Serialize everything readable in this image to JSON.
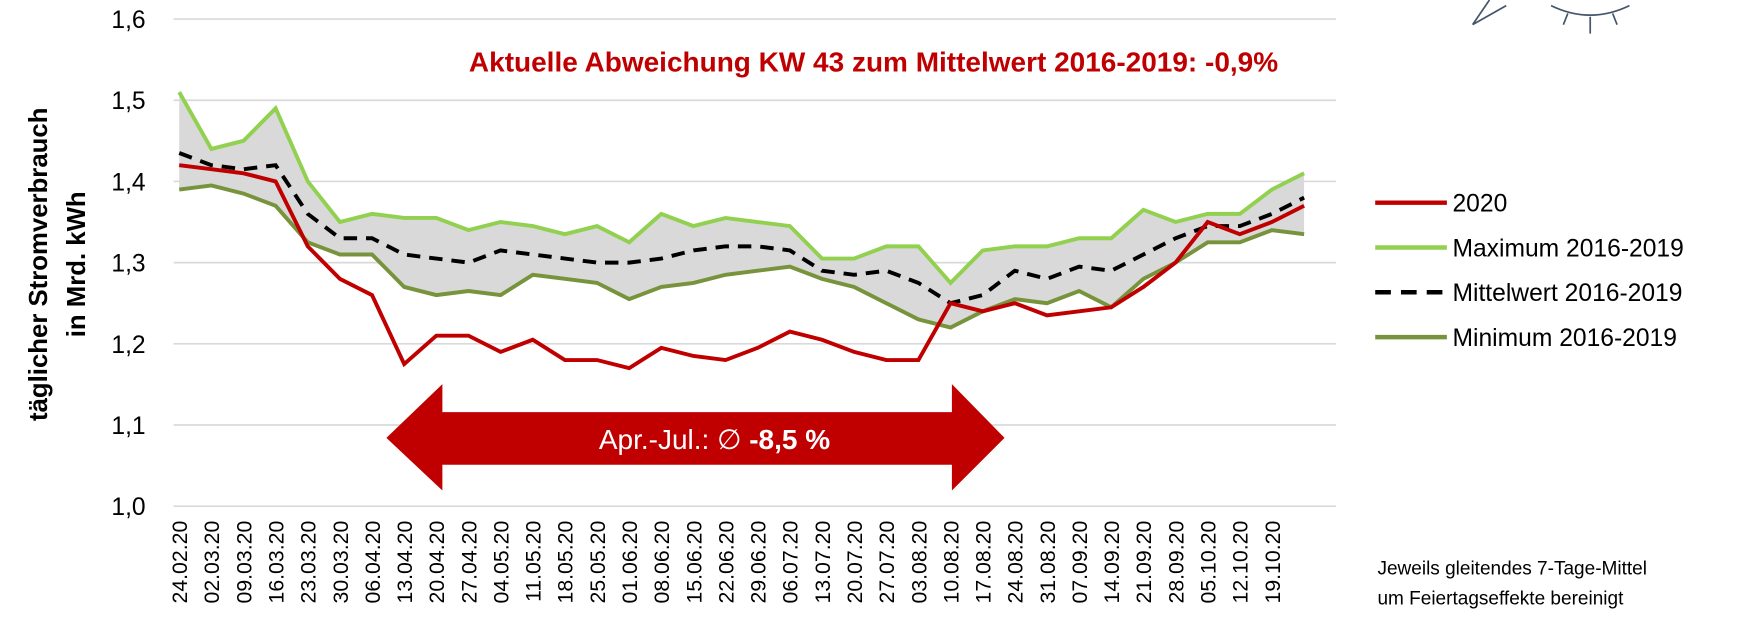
{
  "chart_data": {
    "type": "line",
    "annotation": "Aktuelle Abweichung KW 43 zum Mittelwert 2016-2019: -0,9%",
    "arrow_label": "Apr.-Jul.: ∅ ",
    "arrow_value": "-8,5 %",
    "ylabel": [
      "täglicher Stromverbrauch",
      "in Mrd. kWh"
    ],
    "note": [
      "Jeweils gleitendes 7-Tage-Mittel",
      "um Feiertagseffekte bereinigt"
    ],
    "categories": [
      "24.02.20",
      "02.03.20",
      "09.03.20",
      "16.03.20",
      "23.03.20",
      "30.03.20",
      "06.04.20",
      "13.04.20",
      "20.04.20",
      "27.04.20",
      "04.05.20",
      "11.05.20",
      "18.05.20",
      "25.05.20",
      "01.06.20",
      "08.06.20",
      "15.06.20",
      "22.06.20",
      "29.06.20",
      "06.07.20",
      "13.07.20",
      "20.07.20",
      "27.07.20",
      "03.08.20",
      "10.08.20",
      "17.08.20",
      "24.08.20",
      "31.08.20",
      "07.09.20",
      "14.09.20",
      "21.09.20",
      "28.09.20",
      "05.10.20",
      "12.10.20",
      "19.10.20",
      null
    ],
    "series": [
      {
        "name": "2020",
        "color": "#c00000",
        "dash": false,
        "values": [
          1.42,
          1.415,
          1.41,
          1.4,
          1.32,
          1.28,
          1.26,
          1.175,
          1.21,
          1.21,
          1.19,
          1.205,
          1.18,
          1.18,
          1.17,
          1.195,
          1.185,
          1.18,
          1.195,
          1.215,
          1.205,
          1.19,
          1.18,
          1.18,
          1.25,
          1.24,
          1.25,
          1.235,
          1.24,
          1.245,
          1.27,
          1.3,
          1.35,
          1.335,
          1.35,
          1.37
        ]
      },
      {
        "name": "Maximum 2016-2019",
        "color": "#92d050",
        "dash": false,
        "values": [
          1.51,
          1.44,
          1.45,
          1.49,
          1.4,
          1.35,
          1.36,
          1.355,
          1.355,
          1.34,
          1.35,
          1.345,
          1.335,
          1.345,
          1.325,
          1.36,
          1.345,
          1.355,
          1.35,
          1.345,
          1.305,
          1.305,
          1.32,
          1.32,
          1.275,
          1.315,
          1.32,
          1.32,
          1.33,
          1.33,
          1.365,
          1.35,
          1.36,
          1.36,
          1.39,
          1.41
        ]
      },
      {
        "name": "Mittelwert 2016-2019",
        "color": "#000000",
        "dash": true,
        "values": [
          1.435,
          1.42,
          1.415,
          1.42,
          1.36,
          1.33,
          1.33,
          1.31,
          1.305,
          1.3,
          1.315,
          1.31,
          1.305,
          1.3,
          1.3,
          1.305,
          1.315,
          1.32,
          1.32,
          1.315,
          1.29,
          1.285,
          1.29,
          1.275,
          1.25,
          1.26,
          1.29,
          1.28,
          1.295,
          1.29,
          1.31,
          1.33,
          1.345,
          1.345,
          1.36,
          1.38
        ]
      },
      {
        "name": "Minimum 2016-2019",
        "color": "#77933c",
        "dash": false,
        "values": [
          1.39,
          1.395,
          1.385,
          1.37,
          1.325,
          1.31,
          1.31,
          1.27,
          1.26,
          1.265,
          1.26,
          1.285,
          1.28,
          1.275,
          1.255,
          1.27,
          1.275,
          1.285,
          1.29,
          1.295,
          1.28,
          1.27,
          1.25,
          1.23,
          1.22,
          1.24,
          1.255,
          1.25,
          1.265,
          1.245,
          1.28,
          1.3,
          1.325,
          1.325,
          1.34,
          1.335
        ]
      }
    ],
    "ylim": [
      1.0,
      1.6
    ],
    "yticks": [
      {
        "value": 1.0,
        "label": "1,0"
      },
      {
        "value": 1.1,
        "label": "1,1"
      },
      {
        "value": 1.2,
        "label": "1,2"
      },
      {
        "value": 1.3,
        "label": "1,3"
      },
      {
        "value": 1.4,
        "label": "1,4"
      },
      {
        "value": 1.5,
        "label": "1,5"
      },
      {
        "value": 1.6,
        "label": "1,6"
      }
    ],
    "grid": true,
    "band_color": "#d9d9d9",
    "annotation_color": "#c00000"
  }
}
